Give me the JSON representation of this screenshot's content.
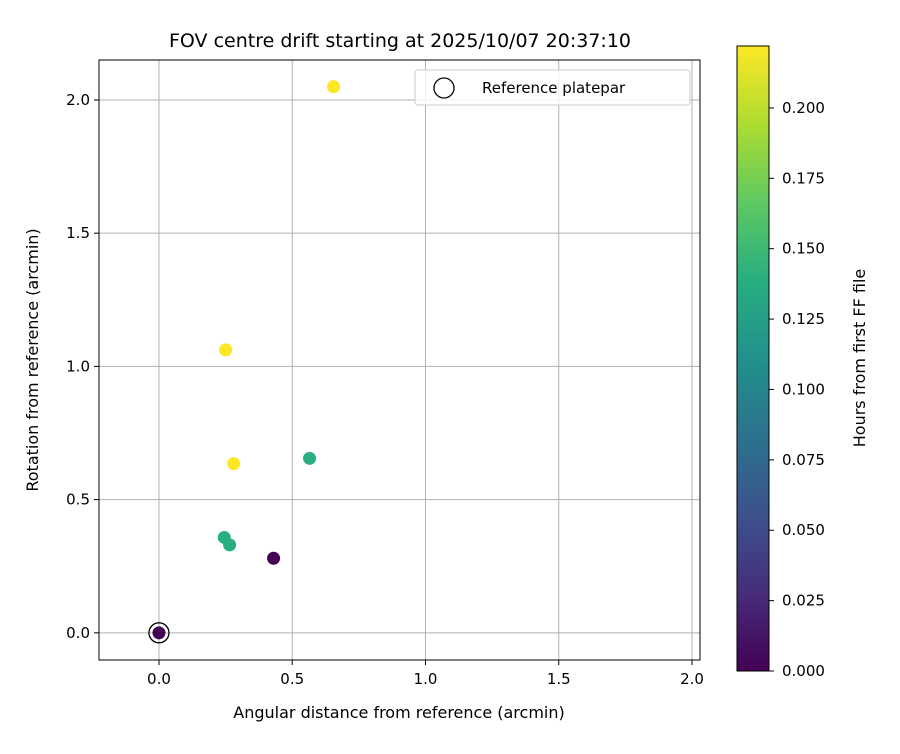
{
  "chart_data": {
    "type": "scatter",
    "title": "FOV centre drift starting at 2025/10/07 20:37:10",
    "xlabel": "Angular distance from reference (arcmin)",
    "ylabel": "Rotation from reference (arcmin)",
    "xlim": [
      -0.225,
      2.03
    ],
    "ylim": [
      -0.102,
      2.15
    ],
    "xticks": [
      0.0,
      0.5,
      1.0,
      1.5,
      2.0
    ],
    "xtick_labels": [
      "0.0",
      "0.5",
      "1.0",
      "1.5",
      "2.0"
    ],
    "yticks": [
      0.0,
      0.5,
      1.0,
      1.5,
      2.0
    ],
    "ytick_labels": [
      "0.0",
      "0.5",
      "1.0",
      "1.5",
      "2.0"
    ],
    "grid": true,
    "points": [
      {
        "x": 0.0,
        "y": 0.0,
        "hours": 0.0
      },
      {
        "x": 0.43,
        "y": 0.28,
        "hours": 0.0
      },
      {
        "x": 0.245,
        "y": 0.358,
        "hours": 0.14
      },
      {
        "x": 0.265,
        "y": 0.33,
        "hours": 0.14
      },
      {
        "x": 0.565,
        "y": 0.655,
        "hours": 0.14
      },
      {
        "x": 0.28,
        "y": 0.635,
        "hours": 0.222
      },
      {
        "x": 0.25,
        "y": 1.062,
        "hours": 0.222
      },
      {
        "x": 0.655,
        "y": 2.05,
        "hours": 0.222
      }
    ],
    "reference_point": {
      "x": 0.0,
      "y": 0.0
    },
    "legend": {
      "label": "Reference platepar",
      "location": "top-right"
    },
    "colorbar": {
      "label": "Hours from first FF file",
      "colormap": "viridis",
      "range": [
        0.0,
        0.222
      ],
      "ticks": [
        0.0,
        0.025,
        0.05,
        0.075,
        0.1,
        0.125,
        0.15,
        0.175,
        0.2
      ],
      "tick_labels": [
        "0.000",
        "0.025",
        "0.050",
        "0.075",
        "0.100",
        "0.125",
        "0.150",
        "0.175",
        "0.200"
      ]
    }
  }
}
